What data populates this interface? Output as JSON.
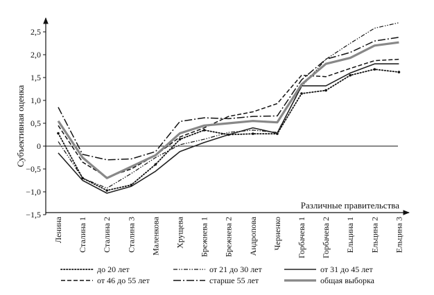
{
  "chart_data": {
    "type": "line",
    "title": "",
    "xlabel": "Различные правительства",
    "ylabel": "Субъективная оценка",
    "ylim": [
      -1.5,
      2.5
    ],
    "yticks": [
      "-1,5",
      "-1,0",
      "-0,5",
      "0",
      "0,5",
      "1,0",
      "1,5",
      "2,0",
      "2,5"
    ],
    "ytick_values": [
      -1.5,
      -1.0,
      -0.5,
      0,
      0.5,
      1.0,
      1.5,
      2.0,
      2.5
    ],
    "grid": false,
    "legend_position": "bottom",
    "categories": [
      "Ленина",
      "Сталина 1",
      "Сталина 2",
      "Сталина 3",
      "Маленкова",
      "Хрущева",
      "Брежнева 1",
      "Брежнева 2",
      "Андропова",
      "Черненко",
      "Горбачева 1",
      "Горбачева 2",
      "Ельцина 1",
      "Ельцина 2",
      "Ельцина 3"
    ],
    "series": [
      {
        "name": "до 20 лет",
        "style": "dotted-dots",
        "color": "#111111",
        "values": [
          0.28,
          -0.7,
          -0.97,
          -0.85,
          -0.4,
          0.15,
          0.35,
          0.25,
          0.27,
          0.27,
          1.15,
          1.22,
          1.55,
          1.68,
          1.62
        ]
      },
      {
        "name": "от 21 до 30 лет",
        "style": "dash-dot-dot",
        "color": "#111111",
        "values": [
          0.1,
          -0.7,
          -0.92,
          -0.6,
          -0.25,
          0.03,
          0.15,
          0.3,
          0.35,
          0.3,
          1.3,
          1.9,
          2.25,
          2.58,
          2.7
        ]
      },
      {
        "name": "от 31 до 45 лет",
        "style": "solid-thin",
        "color": "#222222",
        "values": [
          -0.15,
          -0.75,
          -1.03,
          -0.88,
          -0.55,
          -0.12,
          0.08,
          0.25,
          0.4,
          0.28,
          1.32,
          1.32,
          1.6,
          1.8,
          1.8
        ]
      },
      {
        "name": "от 46 до 55 лет",
        "style": "dashed",
        "color": "#111111",
        "values": [
          0.45,
          -0.35,
          -0.68,
          -0.5,
          -0.2,
          0.2,
          0.4,
          0.65,
          0.75,
          0.93,
          1.55,
          1.52,
          1.7,
          1.87,
          1.9
        ]
      },
      {
        "name": "старше 55 лет",
        "style": "long-dash-dot",
        "color": "#111111",
        "values": [
          0.85,
          -0.18,
          -0.3,
          -0.28,
          -0.12,
          0.54,
          0.62,
          0.6,
          0.65,
          0.66,
          1.45,
          1.9,
          2.05,
          2.3,
          2.38
        ]
      },
      {
        "name": "общая выборка",
        "style": "thick-gray",
        "color": "#888888",
        "values": [
          0.55,
          -0.25,
          -0.7,
          -0.45,
          -0.2,
          0.28,
          0.45,
          0.5,
          0.55,
          0.52,
          1.35,
          1.8,
          1.93,
          2.2,
          2.27
        ]
      }
    ]
  }
}
